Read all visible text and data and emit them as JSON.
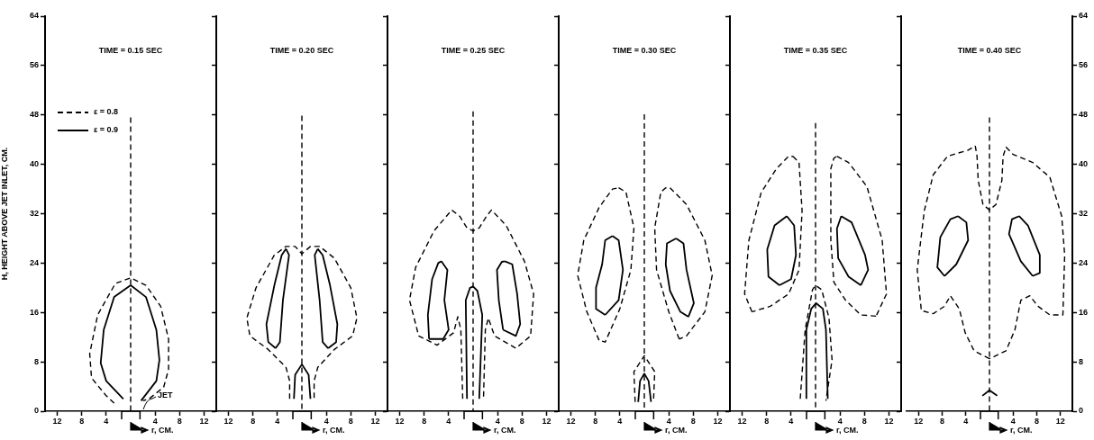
{
  "chart_data": [
    {
      "type": "line",
      "title": "TIME = 0.15 SEC",
      "xlabel": "r, CM.",
      "ylabel": "H, HEIGHT ABOVE JET INLET, CM.",
      "legend": "top left",
      "grid": false,
      "marker": "none",
      "xlim": [
        -14,
        14
      ],
      "xticks": [
        {
          "value": -12,
          "label": "12"
        },
        {
          "value": -8,
          "label": "8"
        },
        {
          "value": -4,
          "label": "4"
        },
        {
          "value": 4,
          "label": "4"
        },
        {
          "value": 8,
          "label": "8"
        },
        {
          "value": 12,
          "label": "12"
        }
      ],
      "ylim": [
        0,
        64
      ],
      "yticks": [
        0,
        8,
        16,
        24,
        32,
        40,
        48,
        56,
        64
      ],
      "annotations": [
        "JET"
      ],
      "series": [
        {
          "name": "ε = 0.8",
          "color": "#000000",
          "line_style": "dashed",
          "x": [
            -2.7,
            -4,
            -6.4,
            -6.7,
            -5.4,
            -2.5,
            0,
            2.5,
            4.9,
            6.2,
            6.2,
            5.4,
            3,
            2
          ],
          "values": [
            1.3,
            2.5,
            5.4,
            9.3,
            15.6,
            20.7,
            21.6,
            20.4,
            17,
            11.7,
            6.8,
            3.9,
            2,
            1.7
          ]
        },
        {
          "name": "ε = 0.9",
          "color": "#000000",
          "line_style": "solid",
          "x": [
            -1.2,
            -4,
            -4.9,
            -4.4,
            -2.7,
            0,
            2.5,
            4.2,
            4.7,
            4.2,
            1.7
          ],
          "values": [
            2,
            4.9,
            7.8,
            13.2,
            18.5,
            20.4,
            18.5,
            13.2,
            8.3,
            4.9,
            1.7
          ]
        },
        {
          "color": "#000000",
          "line_style": "dashed",
          "x": [
            0,
            0
          ],
          "values": [
            47.6,
            0
          ]
        }
      ]
    },
    {
      "type": "line",
      "title": "TIME = 0.20 SEC",
      "xlabel": "r, CM.",
      "grid": false,
      "marker": "none",
      "tick_labels": "x",
      "xlim": [
        -14,
        14
      ],
      "xticks": [
        {
          "value": -12,
          "label": "12"
        },
        {
          "value": -8,
          "label": "8"
        },
        {
          "value": -4,
          "label": "4"
        },
        {
          "value": 4,
          "label": "4"
        },
        {
          "value": 8,
          "label": "8"
        },
        {
          "value": 12,
          "label": "12"
        }
      ],
      "ylim": [
        0,
        64
      ],
      "yticks": [
        0,
        8,
        16,
        24,
        32,
        40,
        48,
        56,
        64
      ],
      "series": [
        {
          "color": "#000000",
          "line_style": "dashed",
          "x": [
            -2,
            -2,
            -2.6,
            -5.5,
            -8.5,
            -9,
            -7.5,
            -4.5,
            -2.6,
            -1.1,
            0,
            1.4,
            2.9,
            5.3,
            8,
            9,
            8.3,
            5.3,
            2.6,
            2,
            2
          ],
          "values": [
            2,
            4.9,
            7.1,
            10,
            12.2,
            15.1,
            20,
            25.3,
            26.7,
            26.7,
            25.5,
            26.7,
            26.7,
            24.8,
            20,
            15.1,
            12.2,
            10,
            7.1,
            4.9,
            2
          ]
        },
        {
          "color": "#000000",
          "line_style": "solid",
          "x": [
            -2.6,
            -2.1,
            -3.1,
            -3.6,
            -4.3
          ],
          "values": [
            26.3,
            25.3,
            18,
            11.2,
            10.2
          ]
        },
        {
          "color": "#000000",
          "line_style": "solid",
          "x": [
            -4.3,
            -5.5,
            -5.8,
            -4.5,
            -3.3,
            -2.6
          ],
          "values": [
            10.2,
            11.2,
            14.1,
            20.4,
            25.3,
            26.3
          ]
        },
        {
          "color": "#000000",
          "line_style": "solid",
          "x": [
            2.6,
            3.4,
            4.6,
            5.8,
            5.6,
            4.3
          ],
          "values": [
            26.3,
            25.3,
            20.4,
            14.1,
            11.2,
            10.2
          ]
        },
        {
          "color": "#000000",
          "line_style": "solid",
          "x": [
            4.3,
            3.4,
            2.9,
            2.1,
            2.6
          ],
          "values": [
            10.2,
            11.2,
            18,
            25.3,
            26.3
          ]
        },
        {
          "color": "#000000",
          "line_style": "solid",
          "x": [
            -1.3,
            -1.1,
            0,
            1.1,
            1.4
          ],
          "values": [
            2,
            5.9,
            7.6,
            5.9,
            2
          ]
        },
        {
          "color": "#000000",
          "line_style": "dashed",
          "x": [
            0,
            0
          ],
          "values": [
            47.9,
            0
          ]
        }
      ]
    },
    {
      "type": "line",
      "title": "TIME = 0.25 SEC",
      "xlabel": "r, CM.",
      "grid": false,
      "marker": "none",
      "tick_labels": "x",
      "xlim": [
        -14,
        14
      ],
      "xticks": [
        {
          "value": -12,
          "label": "12"
        },
        {
          "value": -8,
          "label": "8"
        },
        {
          "value": -4,
          "label": "4"
        },
        {
          "value": 4,
          "label": "4"
        },
        {
          "value": 8,
          "label": "8"
        },
        {
          "value": 12,
          "label": "12"
        }
      ],
      "ylim": [
        0,
        64
      ],
      "yticks": [
        0,
        8,
        16,
        24,
        32,
        40,
        48,
        56,
        64
      ],
      "series": [
        {
          "color": "#000000",
          "line_style": "dashed",
          "x": [
            -1.7,
            -2,
            -2.5,
            -3.2,
            -5.9,
            -8.9,
            -10.4,
            -9.4,
            -6.4,
            -3.5,
            -2.2,
            -1,
            0,
            1,
            2.2,
            3,
            5.4,
            8.4,
            9.9,
            9.4,
            7,
            3.5,
            2.5,
            2,
            1.7
          ],
          "values": [
            2,
            13.2,
            15.3,
            12.7,
            10.7,
            12.2,
            18,
            23.3,
            29.2,
            32.6,
            31.6,
            29.7,
            29.2,
            29.7,
            31.6,
            32.6,
            30.1,
            24.3,
            19,
            12.2,
            10.2,
            12.2,
            15.1,
            13.2,
            2
          ]
        },
        {
          "color": "#000000",
          "line_style": "solid",
          "x": [
            -5.2,
            -4.2,
            -4.7,
            -4,
            -4.9,
            -7.2
          ],
          "values": [
            24.3,
            22.9,
            18,
            13.2,
            11.7,
            11.7
          ]
        },
        {
          "color": "#000000",
          "line_style": "solid",
          "x": [
            -7.2,
            -7.4,
            -6.7,
            -5.7,
            -5.2
          ],
          "values": [
            11.7,
            15.6,
            21.4,
            24,
            24.3
          ]
        },
        {
          "color": "#000000",
          "line_style": "solid",
          "x": [
            5.2,
            6.4,
            7.2,
            7.7,
            7,
            4.9
          ],
          "values": [
            24.3,
            23.8,
            19,
            14.1,
            12.2,
            13.2
          ]
        },
        {
          "color": "#000000",
          "line_style": "solid",
          "x": [
            4.9,
            4.2,
            3.9,
            4.7,
            5.2
          ],
          "values": [
            13.2,
            18,
            22.9,
            24.2,
            24.3
          ]
        },
        {
          "color": "#000000",
          "line_style": "solid",
          "x": [
            -1,
            -1.2,
            -0.5,
            0,
            0.7,
            1.5,
            1
          ],
          "values": [
            2,
            18,
            20,
            20.2,
            19.5,
            15.6,
            2
          ]
        },
        {
          "color": "#000000",
          "line_style": "dashed",
          "x": [
            0,
            0
          ],
          "values": [
            48.6,
            0
          ]
        }
      ]
    },
    {
      "type": "line",
      "title": "TIME = 0.30 SEC",
      "xlabel": "r, CM.",
      "grid": false,
      "marker": "none",
      "tick_labels": "x",
      "xlim": [
        -14,
        14
      ],
      "xticks": [
        {
          "value": -12,
          "label": "12"
        },
        {
          "value": -8,
          "label": "8"
        },
        {
          "value": -4,
          "label": "4"
        },
        {
          "value": 4,
          "label": "4"
        },
        {
          "value": 8,
          "label": "8"
        },
        {
          "value": 12,
          "label": "12"
        }
      ],
      "ylim": [
        0,
        64
      ],
      "yticks": [
        0,
        8,
        16,
        24,
        32,
        40,
        48,
        56,
        64
      ],
      "series": [
        {
          "color": "#000000",
          "line_style": "dashed",
          "x": [
            -4.2,
            -3,
            -1.7,
            -2.2,
            -4,
            -6.4,
            -7.4
          ],
          "values": [
            36.2,
            35.5,
            29.7,
            22.9,
            16.6,
            11.2,
            11.5
          ]
        },
        {
          "color": "#000000",
          "line_style": "dashed",
          "x": [
            -7.4,
            -9.4,
            -10.9,
            -9.9,
            -7.4,
            -5.2,
            -4.2
          ],
          "values": [
            11.5,
            16.1,
            22,
            27.7,
            33,
            36,
            36.2
          ]
        },
        {
          "color": "#000000",
          "line_style": "dashed",
          "x": [
            4.2,
            6.9,
            9.9,
            11.1,
            9.9,
            6.9,
            5.7
          ],
          "values": [
            36.2,
            33.5,
            27.7,
            22,
            16.1,
            12.2,
            11.7
          ]
        },
        {
          "color": "#000000",
          "line_style": "dashed",
          "x": [
            5.7,
            4,
            2,
            1.7,
            2.7,
            3.5,
            4.2
          ],
          "values": [
            11.7,
            16.1,
            22.9,
            29.7,
            35.5,
            36.2,
            36.2
          ]
        },
        {
          "color": "#000000",
          "line_style": "solid",
          "x": [
            -5.2,
            -4.2,
            -3.5,
            -4.2,
            -6.4
          ],
          "values": [
            28.4,
            27.7,
            22.9,
            18,
            15.6
          ]
        },
        {
          "color": "#000000",
          "line_style": "solid",
          "x": [
            -6.4,
            -7.9,
            -7.9,
            -6.9,
            -6.4,
            -5.2
          ],
          "values": [
            15.6,
            16.6,
            20,
            23.8,
            27.7,
            28.4
          ]
        },
        {
          "color": "#000000",
          "line_style": "solid",
          "x": [
            5.2,
            6.4,
            6.9,
            8.1,
            7.2
          ],
          "values": [
            28,
            27.2,
            22.9,
            17.5,
            15.3
          ]
        },
        {
          "color": "#000000",
          "line_style": "solid",
          "x": [
            7.2,
            5.9,
            4.2,
            3.5,
            3.7,
            5.2
          ],
          "values": [
            15.3,
            16.1,
            19.5,
            23.8,
            27.2,
            28
          ]
        },
        {
          "color": "#000000",
          "line_style": "dashed",
          "x": [
            -1.5,
            -1.7,
            0,
            1.7,
            1.5
          ],
          "values": [
            1.5,
            6.4,
            9,
            6.4,
            1.5
          ]
        },
        {
          "color": "#000000",
          "line_style": "solid",
          "x": [
            -1,
            -0.7,
            0,
            0.7,
            1.1
          ],
          "values": [
            1.5,
            4.9,
            6.1,
            4.9,
            1.5
          ]
        },
        {
          "color": "#000000",
          "line_style": "dashed",
          "x": [
            0,
            0
          ],
          "values": [
            48.1,
            0
          ]
        }
      ]
    },
    {
      "type": "line",
      "title": "TIME = 0.35 SEC",
      "xlabel": "r, CM.",
      "grid": false,
      "marker": "none",
      "tick_labels": "x",
      "xlim": [
        -14,
        14
      ],
      "xticks": [
        {
          "value": -12,
          "label": "12"
        },
        {
          "value": -8,
          "label": "8"
        },
        {
          "value": -4,
          "label": "4"
        },
        {
          "value": 4,
          "label": "4"
        },
        {
          "value": 8,
          "label": "8"
        },
        {
          "value": 12,
          "label": "12"
        }
      ],
      "ylim": [
        0,
        64
      ],
      "yticks": [
        0,
        8,
        16,
        24,
        32,
        40,
        48,
        56,
        64
      ],
      "series": [
        {
          "color": "#000000",
          "line_style": "dashed",
          "x": [
            -3.7,
            -2.7,
            -2.2,
            -2.7,
            -4.4,
            -7.4,
            -10.4
          ],
          "values": [
            41.3,
            40.3,
            32.5,
            22.9,
            19,
            17,
            16.1
          ]
        },
        {
          "color": "#000000",
          "line_style": "dashed",
          "x": [
            -10.4,
            -11.6,
            -10.9,
            -8.9,
            -6.4,
            -4.4,
            -3.7
          ],
          "values": [
            16.1,
            19,
            27.7,
            35.4,
            39.3,
            41.3,
            41.3
          ]
        },
        {
          "color": "#000000",
          "line_style": "dashed",
          "x": [
            3.5,
            5.4,
            8.4,
            10.9,
            11.6,
            9.9
          ],
          "values": [
            41.3,
            40.3,
            36.4,
            27.7,
            19,
            15.4
          ]
        },
        {
          "color": "#000000",
          "line_style": "dashed",
          "x": [
            9.9,
            7.4,
            4.9,
            3,
            2.5,
            2.5,
            3,
            3.5
          ],
          "values": [
            15.4,
            15.6,
            18,
            20.9,
            27.7,
            39.3,
            41,
            41.3
          ]
        },
        {
          "color": "#000000",
          "line_style": "solid",
          "x": [
            -4.7,
            -3.5,
            -3.2,
            -4,
            -5.9
          ],
          "values": [
            31.6,
            30.1,
            25.3,
            21.4,
            20.4
          ]
        },
        {
          "color": "#000000",
          "line_style": "solid",
          "x": [
            -5.9,
            -7.7,
            -7.9,
            -6.7,
            -4.7
          ],
          "values": [
            20.4,
            21.8,
            26.2,
            30.1,
            31.6
          ]
        },
        {
          "color": "#000000",
          "line_style": "solid",
          "x": [
            4.2,
            5.9,
            8.1,
            8.6,
            7.4
          ],
          "values": [
            31.6,
            30.6,
            25.3,
            22.9,
            20.4
          ]
        },
        {
          "color": "#000000",
          "line_style": "solid",
          "x": [
            7.4,
            5.4,
            3.7,
            3.5,
            4.2
          ],
          "values": [
            20.4,
            21.8,
            24.8,
            29.6,
            31.6
          ]
        },
        {
          "color": "#000000",
          "line_style": "dashed",
          "x": [
            -2.5,
            -1.7,
            -0.5,
            0,
            1,
            2.2,
            2.7,
            1.7
          ],
          "values": [
            2,
            13.2,
            19.7,
            20.4,
            19.7,
            15.1,
            8.3,
            1.7
          ]
        },
        {
          "color": "#000000",
          "line_style": "solid",
          "x": [
            -1.5,
            -1.5,
            -0.7,
            0.1,
            1.2,
            1.7,
            2
          ],
          "values": [
            2,
            13.2,
            16.6,
            17.5,
            16.6,
            13.2,
            2
          ]
        },
        {
          "color": "#000000",
          "line_style": "dashed",
          "x": [
            0,
            0
          ],
          "values": [
            46.7,
            0
          ]
        }
      ]
    },
    {
      "type": "line",
      "title": "TIME = 0.40 SEC",
      "xlabel": "r, CM.",
      "grid": false,
      "marker": "none",
      "xlim": [
        -14,
        14
      ],
      "xticks": [
        {
          "value": -12,
          "label": "12"
        },
        {
          "value": -8,
          "label": "8"
        },
        {
          "value": -4,
          "label": "4"
        },
        {
          "value": 4,
          "label": "4"
        },
        {
          "value": 8,
          "label": "8"
        },
        {
          "value": 12,
          "label": "12"
        }
      ],
      "y2lim": [
        0,
        64
      ],
      "y2ticks": [
        0,
        8,
        16,
        24,
        32,
        40,
        48,
        56,
        64
      ],
      "series": [
        {
          "color": "#000000",
          "axis": "y2",
          "line_style": "dashed",
          "x": [
            -2.4,
            -2.1,
            -1.9,
            -1.1,
            0,
            1.1,
            2.1,
            2.3,
            2.8,
            4,
            7.3,
            10.2,
            12.2,
            12.7,
            12.4,
            10.2,
            8.2,
            6.8,
            5.3,
            4.3,
            2.8,
            0
          ],
          "values": [
            43,
            41.3,
            37.4,
            33.5,
            32.6,
            33.5,
            37.4,
            41.3,
            42.8,
            41.6,
            40.3,
            37.9,
            31.6,
            25.3,
            15.6,
            15.6,
            17,
            18.7,
            18,
            13.2,
            9.8,
            8.5
          ]
        },
        {
          "color": "#000000",
          "axis": "y2",
          "line_style": "dashed",
          "x": [
            0,
            -2.6,
            -4.1,
            -5.1,
            -6.6,
            -7.6,
            -9.5,
            -11.5,
            -12.2,
            -11,
            -9.5,
            -7.1,
            -3.6,
            -2.4
          ],
          "values": [
            8.5,
            9.8,
            12.7,
            16.6,
            18.7,
            17,
            15.8,
            16.3,
            22.9,
            32.5,
            38.3,
            41.3,
            42.3,
            43
          ]
        },
        {
          "color": "#000000",
          "axis": "y2",
          "line_style": "solid",
          "x": [
            -5.3,
            -3.9,
            -3.6,
            -5.6,
            -7.6
          ],
          "values": [
            31.6,
            30.6,
            27.7,
            23.8,
            21.9
          ]
        },
        {
          "color": "#000000",
          "axis": "y2",
          "line_style": "solid",
          "x": [
            -7.6,
            -8.8,
            -8.3,
            -6.6,
            -5.3
          ],
          "values": [
            21.9,
            23.3,
            28.2,
            31.1,
            31.6
          ]
        },
        {
          "color": "#000000",
          "axis": "y2",
          "line_style": "solid",
          "x": [
            5,
            6.5,
            8.5,
            8.5,
            7.3
          ],
          "values": [
            31.6,
            30.1,
            25.3,
            22.4,
            21.9
          ]
        },
        {
          "color": "#000000",
          "axis": "y2",
          "line_style": "solid",
          "x": [
            7.3,
            5.3,
            3.3,
            3.8,
            5
          ],
          "values": [
            21.9,
            24.3,
            28.7,
            31.1,
            31.6
          ]
        },
        {
          "color": "#000000",
          "axis": "y2",
          "line_style": "solid",
          "x": [
            -1.2,
            0,
            1.3
          ],
          "values": [
            2.5,
            3.4,
            2.5
          ]
        },
        {
          "color": "#000000",
          "axis": "y2",
          "line_style": "dashed",
          "x": [
            0,
            0
          ],
          "values": [
            47.6,
            0
          ]
        }
      ]
    }
  ]
}
